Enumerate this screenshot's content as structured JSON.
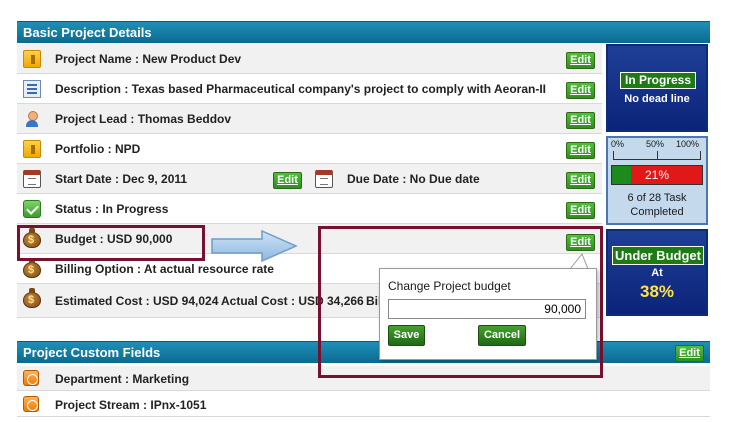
{
  "basic": {
    "title": "Basic Project Details",
    "edit_label": "Edit",
    "rows": {
      "project_name": "Project Name : New Product Dev",
      "description": "Description : Texas based Pharmaceutical company's project to comply with Aeoran-II",
      "project_lead": "Project Lead : Thomas Beddov",
      "portfolio": "Portfolio : NPD",
      "start_date": "Start Date : Dec 9, 2011",
      "due_date": "Due Date : No Due date",
      "status": "Status : In Progress",
      "budget": "Budget : USD 90,000",
      "billing": "Billing Option : At actual resource rate",
      "estimated_cost": "Estimated Cost : USD 94,024",
      "actual_cost": "Actual Cost : USD 34,266",
      "cut_text": "Bil"
    }
  },
  "status_panel": {
    "status": "In Progress",
    "deadline": "No dead line"
  },
  "progress_panel": {
    "ticks": [
      "0%",
      "50%",
      "100%"
    ],
    "percent_label": "21%",
    "percent": 0.21,
    "tasks_line1": "6 of 28 Task",
    "tasks_line2": "Completed"
  },
  "budget_panel": {
    "status": "Under Budget",
    "at_label": "At",
    "percent": "38%"
  },
  "popup": {
    "title": "Change Project budget",
    "value": "90,000",
    "save": "Save",
    "cancel": "Cancel"
  },
  "custom": {
    "title": "Project Custom Fields",
    "edit_label": "Edit",
    "department": "Department : Marketing",
    "stream": "Project Stream : IPnx-1051"
  },
  "colors": {
    "header": "#0b6a91",
    "edit_green": "#2d8f1f",
    "panel_blue": "#0b2479",
    "highlight_border": "#7a1030",
    "arrow": "#9dc3e6"
  }
}
